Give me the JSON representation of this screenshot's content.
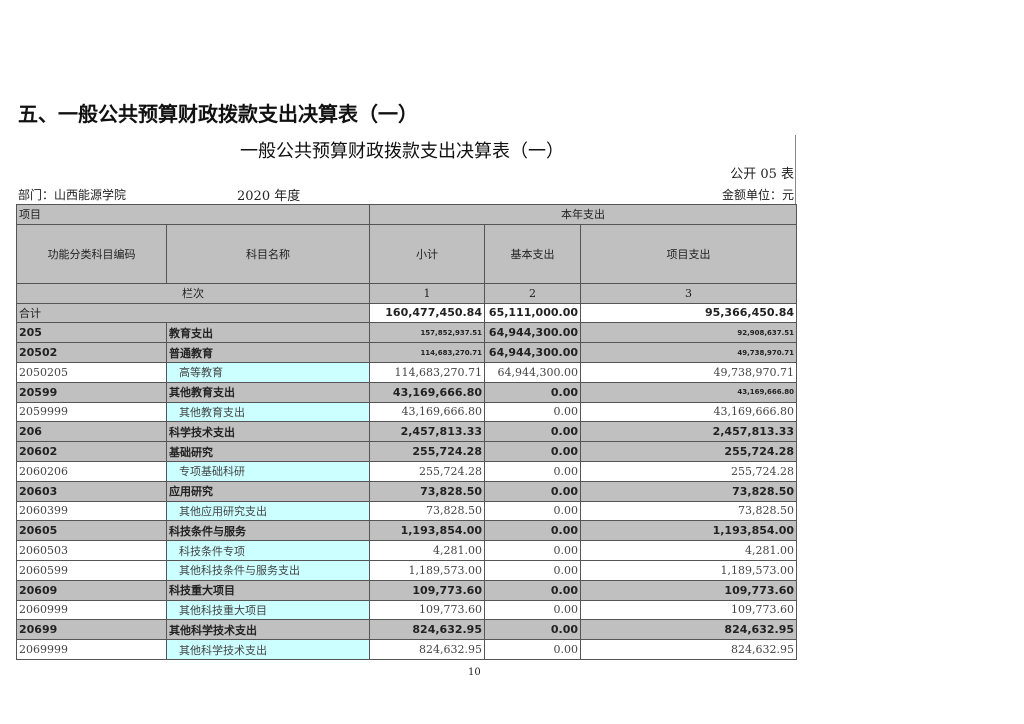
{
  "heading": "五、一般公共预算财政拨款支出决算表（一）",
  "title": "一般公共预算财政拨款支出决算表（一）",
  "table_no": "公开 05 表",
  "department": "部门：山西能源学院",
  "year": "2020 年度",
  "unit": "金额单位：元",
  "header": {
    "item": "项目",
    "current_year": "本年支出",
    "code": "功能分类科目编码",
    "name": "科目名称",
    "subtotal": "小计",
    "basic": "基本支出",
    "project": "项目支出",
    "column_no": "栏次",
    "col1": "1",
    "col2": "2",
    "col3": "3"
  },
  "total": {
    "label": "合计",
    "subtotal": "160,477,450.84",
    "basic": "65,111,000.00",
    "project": "95,366,450.84"
  },
  "rows": [
    {
      "code": "205",
      "name": "教育支出",
      "subtotal": "157,852,937.51",
      "basic": "64,944,300.00",
      "project": "92,908,637.51",
      "level": "category"
    },
    {
      "code": "20502",
      "name": "普通教育",
      "subtotal": "114,683,270.71",
      "basic": "64,944,300.00",
      "project": "49,738,970.71",
      "level": "category"
    },
    {
      "code": "2050205",
      "name": "高等教育",
      "subtotal": "114,683,270.71",
      "basic": "64,944,300.00",
      "project": "49,738,970.71",
      "level": "item"
    },
    {
      "code": "20599",
      "name": "其他教育支出",
      "subtotal": "43,169,666.80",
      "basic": "0.00",
      "project": "43,169,666.80",
      "level": "category"
    },
    {
      "code": "2059999",
      "name": "其他教育支出",
      "subtotal": "43,169,666.80",
      "basic": "0.00",
      "project": "43,169,666.80",
      "level": "item"
    },
    {
      "code": "206",
      "name": "科学技术支出",
      "subtotal": "2,457,813.33",
      "basic": "0.00",
      "project": "2,457,813.33",
      "level": "category"
    },
    {
      "code": "20602",
      "name": "基础研究",
      "subtotal": "255,724.28",
      "basic": "0.00",
      "project": "255,724.28",
      "level": "category"
    },
    {
      "code": "2060206",
      "name": "专项基础科研",
      "subtotal": "255,724.28",
      "basic": "0.00",
      "project": "255,724.28",
      "level": "item"
    },
    {
      "code": "20603",
      "name": "应用研究",
      "subtotal": "73,828.50",
      "basic": "0.00",
      "project": "73,828.50",
      "level": "category"
    },
    {
      "code": "2060399",
      "name": "其他应用研究支出",
      "subtotal": "73,828.50",
      "basic": "0.00",
      "project": "73,828.50",
      "level": "item"
    },
    {
      "code": "20605",
      "name": "科技条件与服务",
      "subtotal": "1,193,854.00",
      "basic": "0.00",
      "project": "1,193,854.00",
      "level": "category"
    },
    {
      "code": "2060503",
      "name": "科技条件专项",
      "subtotal": "4,281.00",
      "basic": "0.00",
      "project": "4,281.00",
      "level": "item"
    },
    {
      "code": "2060599",
      "name": "其他科技条件与服务支出",
      "subtotal": "1,189,573.00",
      "basic": "0.00",
      "project": "1,189,573.00",
      "level": "item"
    },
    {
      "code": "20609",
      "name": "科技重大项目",
      "subtotal": "109,773.60",
      "basic": "0.00",
      "project": "109,773.60",
      "level": "category"
    },
    {
      "code": "2060999",
      "name": "其他科技重大项目",
      "subtotal": "109,773.60",
      "basic": "0.00",
      "project": "109,773.60",
      "level": "item"
    },
    {
      "code": "20699",
      "name": "其他科学技术支出",
      "subtotal": "824,632.95",
      "basic": "0.00",
      "project": "824,632.95",
      "level": "category"
    },
    {
      "code": "2069999",
      "name": "其他科学技术支出",
      "subtotal": "824,632.95",
      "basic": "0.00",
      "project": "824,632.95",
      "level": "item"
    }
  ],
  "colors": {
    "header_gray": "#c0c0c0",
    "item_name_cyan": "#ccffff"
  },
  "page_number": "10"
}
